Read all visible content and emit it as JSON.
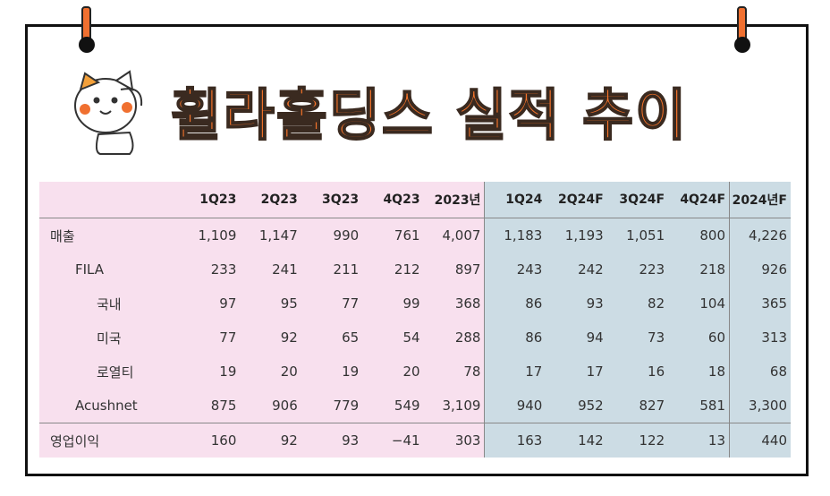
{
  "header": {
    "title": "휠라홀딩스 실적 추이"
  },
  "table": {
    "columns": [
      "1Q23",
      "2Q23",
      "3Q23",
      "4Q23",
      "2023년",
      "1Q24",
      "2Q24F",
      "3Q24F",
      "4Q24F",
      "2024년F"
    ],
    "rows": [
      [
        "매출",
        "1,109",
        "1,147",
        "990",
        "761",
        "4,007",
        "1,183",
        "1,193",
        "1,051",
        "800",
        "4,226"
      ],
      [
        "FILA",
        "233",
        "241",
        "211",
        "212",
        "897",
        "243",
        "242",
        "223",
        "218",
        "926"
      ],
      [
        "국내",
        "97",
        "95",
        "77",
        "99",
        "368",
        "86",
        "93",
        "82",
        "104",
        "365"
      ],
      [
        "미국",
        "77",
        "92",
        "65",
        "54",
        "288",
        "86",
        "94",
        "73",
        "60",
        "313"
      ],
      [
        "로열티",
        "19",
        "20",
        "19",
        "20",
        "78",
        "17",
        "17",
        "16",
        "18",
        "68"
      ],
      [
        "Acushnet",
        "875",
        "906",
        "779",
        "549",
        "3,109",
        "940",
        "952",
        "827",
        "581",
        "3,300"
      ],
      [
        "영업이익",
        "160",
        "92",
        "93",
        "−41",
        "303",
        "163",
        "142",
        "122",
        "13",
        "440"
      ]
    ]
  }
}
